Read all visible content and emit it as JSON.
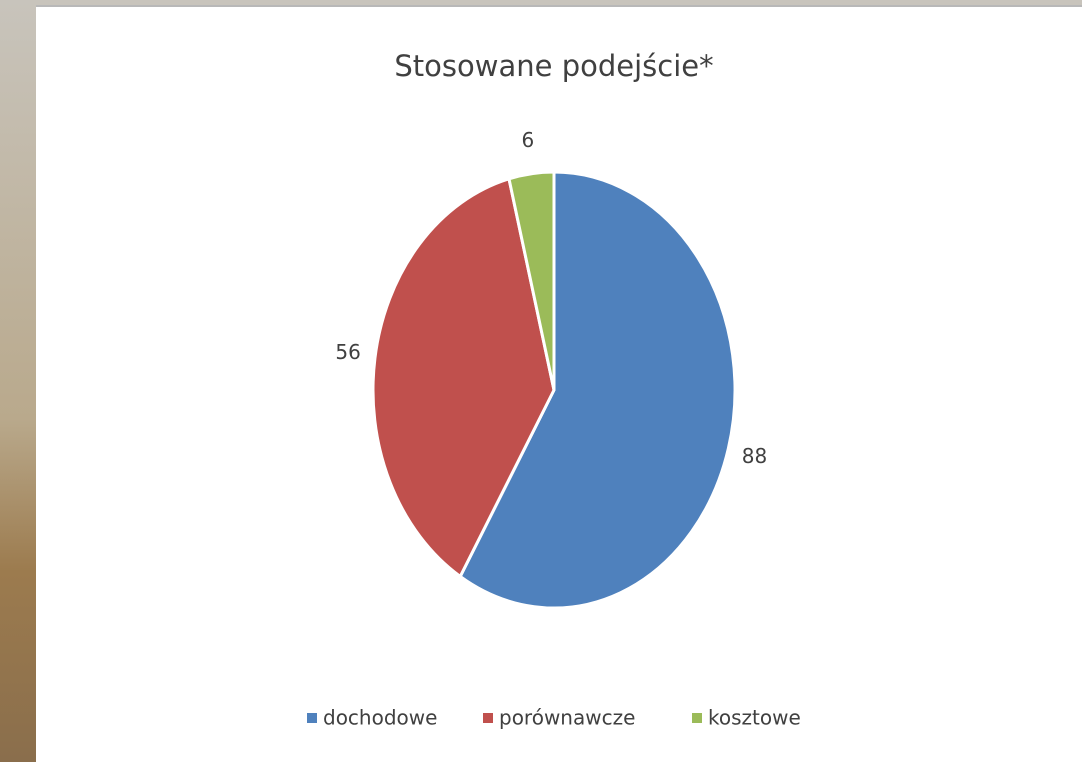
{
  "chart_data": {
    "type": "pie",
    "title": "Stosowane podejście*",
    "categories": [
      "dochodowe",
      "porównawcze",
      "kosztowe"
    ],
    "values": [
      88,
      56,
      6
    ],
    "colors": [
      "#4f81bd",
      "#c0504d",
      "#9bbb59"
    ],
    "legend": "bottom"
  }
}
